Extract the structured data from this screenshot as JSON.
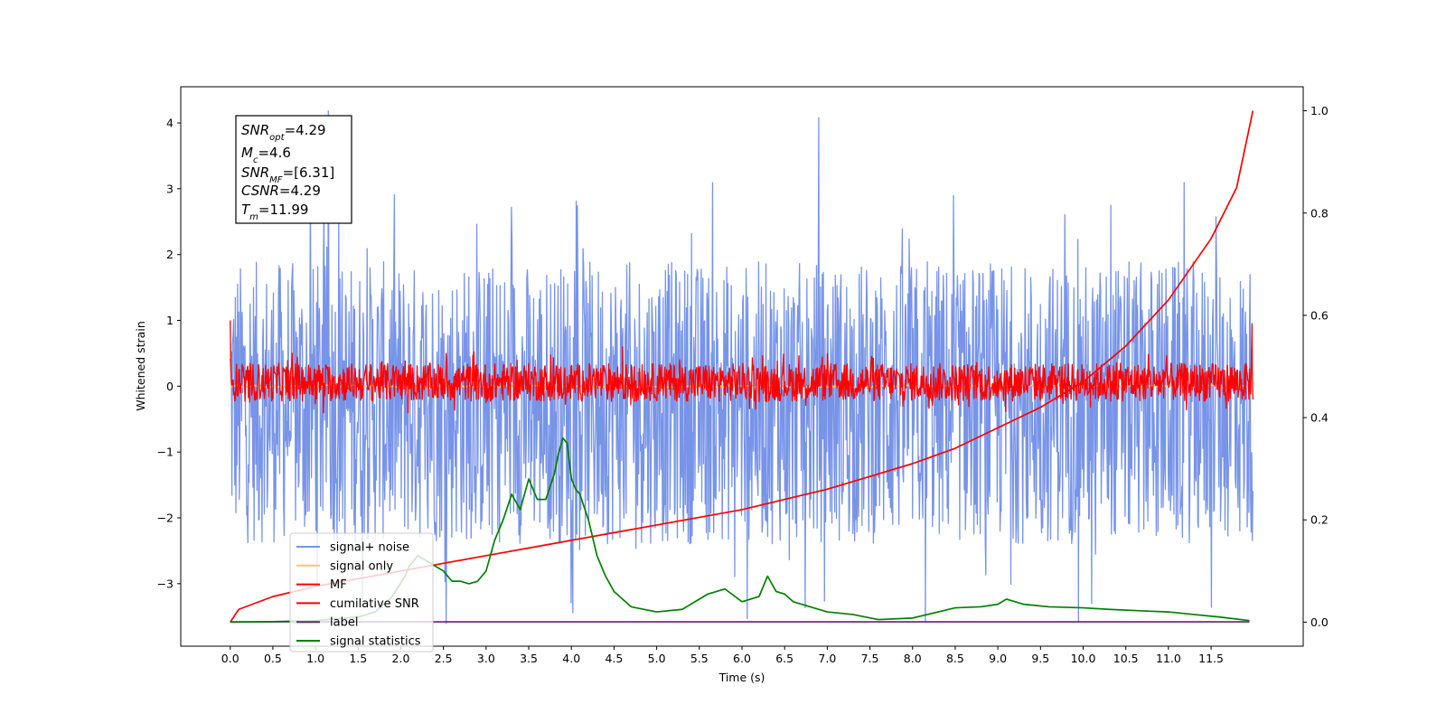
{
  "chart_data": {
    "type": "line",
    "xlabel": "Time (s)",
    "ylabel": "Whitened strain",
    "xlim": [
      -0.58,
      12.58
    ],
    "ylim": [
      -3.95,
      4.55
    ],
    "y2lim": [
      -0.047,
      1.047
    ],
    "xticks": [
      0.0,
      0.5,
      1.0,
      1.5,
      2.0,
      2.5,
      3.0,
      3.5,
      4.0,
      4.5,
      5.0,
      5.5,
      6.0,
      6.5,
      7.0,
      7.5,
      8.0,
      8.5,
      9.0,
      9.5,
      10.0,
      10.5,
      11.0,
      11.5
    ],
    "xtick_labels": [
      "0.0",
      "0.5",
      "1.0",
      "1.5",
      "2.0",
      "2.5",
      "3.0",
      "3.5",
      "4.0",
      "4.5",
      "5.0",
      "5.5",
      "6.0",
      "6.5",
      "7.0",
      "7.5",
      "8.0",
      "8.5",
      "9.0",
      "9.5",
      "10.0",
      "10.5",
      "11.0",
      "11.5"
    ],
    "yticks": [
      -3,
      -2,
      -1,
      0,
      1,
      2,
      3,
      4
    ],
    "ytick_labels": [
      "−3",
      "−2",
      "−1",
      "0",
      "1",
      "2",
      "3",
      "4"
    ],
    "y2ticks": [
      0.0,
      0.2,
      0.4,
      0.6,
      0.8,
      1.0
    ],
    "y2tick_labels": [
      "0.0",
      "0.2",
      "0.4",
      "0.6",
      "0.8",
      "1.0"
    ],
    "legend_position": "lower-left",
    "legend": [
      {
        "label": "signal+ noise",
        "color": "#7794e8"
      },
      {
        "label": "signal only",
        "color": "#f5c87a"
      },
      {
        "label": "MF",
        "color": "#ff0000"
      },
      {
        "label": "cumilative SNR",
        "color": "#ff0000"
      },
      {
        "label": "label",
        "color": "#6a1a7a"
      },
      {
        "label": "signal statistics",
        "color": "#008000"
      }
    ],
    "annotation": {
      "snr_opt": "=4.29",
      "mc": "=4.6",
      "snr_mf": "=[6.31]",
      "csnr": "=4.29",
      "tm": "=11.99"
    },
    "series": [
      {
        "name": "signal+ noise",
        "axis": "left",
        "color": "#7794e8",
        "render": "noise_band",
        "x_range": [
          0.0,
          11.99
        ],
        "y_band": [
          -2.4,
          1.9
        ],
        "peaks": [
          [
            1.15,
            4.18
          ],
          [
            6.9,
            4.08
          ],
          [
            8.15,
            -3.57
          ],
          [
            1.55,
            -3.35
          ],
          [
            10.1,
            -3.3
          ]
        ]
      },
      {
        "name": "signal only",
        "axis": "left",
        "color": "#f5c87a",
        "render": "near_zero",
        "x_range": [
          0.0,
          11.99
        ],
        "y": 0.0
      },
      {
        "name": "MF",
        "axis": "left",
        "color": "#ff0000",
        "render": "noise_band",
        "x_range": [
          0.0,
          11.99
        ],
        "y_band": [
          -0.23,
          0.35
        ],
        "peaks": [
          [
            0.0,
            1.0
          ],
          [
            11.98,
            0.95
          ],
          [
            4.6,
            0.6
          ],
          [
            3.0,
            -0.25
          ]
        ]
      },
      {
        "name": "cumilative SNR",
        "axis": "right",
        "color": "#ff0000",
        "x": [
          0.0,
          0.1,
          0.5,
          1.0,
          1.5,
          2.0,
          2.5,
          3.0,
          3.5,
          4.0,
          4.5,
          5.0,
          5.5,
          6.0,
          6.5,
          7.0,
          7.5,
          8.0,
          8.5,
          9.0,
          9.5,
          10.0,
          10.5,
          11.0,
          11.5,
          11.8,
          11.99
        ],
        "y": [
          0.0,
          0.025,
          0.05,
          0.07,
          0.085,
          0.1,
          0.115,
          0.13,
          0.145,
          0.16,
          0.175,
          0.19,
          0.205,
          0.22,
          0.24,
          0.26,
          0.285,
          0.31,
          0.34,
          0.38,
          0.42,
          0.47,
          0.54,
          0.63,
          0.75,
          0.85,
          1.0
        ]
      },
      {
        "name": "label",
        "axis": "left",
        "color": "#6a1a7a",
        "x": [
          0.0,
          11.95
        ],
        "y": [
          -3.58,
          -3.58
        ]
      },
      {
        "name": "signal statistics",
        "axis": "right",
        "color": "#008000",
        "x": [
          0.0,
          0.5,
          1.0,
          1.5,
          1.7,
          1.9,
          2.05,
          2.1,
          2.2,
          2.3,
          2.5,
          2.6,
          2.7,
          2.8,
          2.9,
          3.0,
          3.1,
          3.2,
          3.3,
          3.4,
          3.5,
          3.6,
          3.7,
          3.8,
          3.85,
          3.9,
          3.95,
          4.0,
          4.05,
          4.1,
          4.2,
          4.3,
          4.4,
          4.5,
          4.7,
          5.0,
          5.3,
          5.6,
          5.8,
          6.0,
          6.2,
          6.3,
          6.4,
          6.5,
          6.6,
          6.8,
          7.0,
          7.3,
          7.6,
          8.0,
          8.5,
          8.8,
          9.0,
          9.1,
          9.3,
          9.6,
          10.0,
          10.3,
          10.7,
          11.0,
          11.3,
          11.6,
          11.95
        ],
        "y": [
          0.0,
          0.001,
          0.003,
          0.01,
          0.02,
          0.05,
          0.09,
          0.11,
          0.13,
          0.12,
          0.1,
          0.08,
          0.08,
          0.075,
          0.08,
          0.1,
          0.16,
          0.2,
          0.25,
          0.22,
          0.28,
          0.24,
          0.24,
          0.29,
          0.33,
          0.36,
          0.35,
          0.28,
          0.26,
          0.25,
          0.2,
          0.13,
          0.09,
          0.06,
          0.03,
          0.02,
          0.025,
          0.055,
          0.065,
          0.04,
          0.05,
          0.09,
          0.06,
          0.055,
          0.04,
          0.03,
          0.02,
          0.015,
          0.005,
          0.008,
          0.028,
          0.03,
          0.035,
          0.045,
          0.035,
          0.03,
          0.028,
          0.025,
          0.022,
          0.02,
          0.015,
          0.01,
          0.003
        ]
      }
    ]
  }
}
